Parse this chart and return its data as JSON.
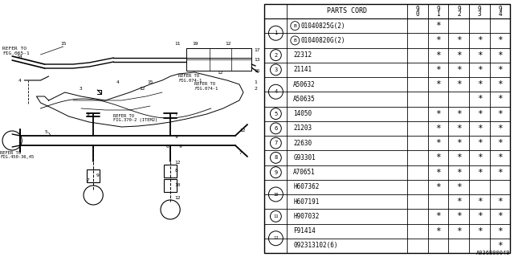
{
  "figure_code": "A036B00049",
  "rows": [
    {
      "num": "1",
      "parts": [
        {
          "code": "B01040825G(2)",
          "has_b": true,
          "stars": [
            false,
            true,
            false,
            false,
            false
          ]
        },
        {
          "code": "B01040820G(2)",
          "has_b": true,
          "stars": [
            false,
            true,
            true,
            true,
            true
          ]
        }
      ]
    },
    {
      "num": "2",
      "parts": [
        {
          "code": "22312",
          "has_b": false,
          "stars": [
            false,
            true,
            true,
            true,
            true
          ]
        }
      ]
    },
    {
      "num": "3",
      "parts": [
        {
          "code": "21141",
          "has_b": false,
          "stars": [
            false,
            true,
            true,
            true,
            true
          ]
        }
      ]
    },
    {
      "num": "4",
      "parts": [
        {
          "code": "A50632",
          "has_b": false,
          "stars": [
            false,
            true,
            true,
            true,
            true
          ]
        },
        {
          "code": "A50635",
          "has_b": false,
          "stars": [
            false,
            false,
            false,
            true,
            true
          ]
        }
      ]
    },
    {
      "num": "5",
      "parts": [
        {
          "code": "14050",
          "has_b": false,
          "stars": [
            false,
            true,
            true,
            true,
            true
          ]
        }
      ]
    },
    {
      "num": "6",
      "parts": [
        {
          "code": "21203",
          "has_b": false,
          "stars": [
            false,
            true,
            true,
            true,
            true
          ]
        }
      ]
    },
    {
      "num": "7",
      "parts": [
        {
          "code": "22630",
          "has_b": false,
          "stars": [
            false,
            true,
            true,
            true,
            true
          ]
        }
      ]
    },
    {
      "num": "8",
      "parts": [
        {
          "code": "G93301",
          "has_b": false,
          "stars": [
            false,
            true,
            true,
            true,
            true
          ]
        }
      ]
    },
    {
      "num": "9",
      "parts": [
        {
          "code": "A70651",
          "has_b": false,
          "stars": [
            false,
            true,
            true,
            true,
            true
          ]
        }
      ]
    },
    {
      "num": "10",
      "parts": [
        {
          "code": "H607362",
          "has_b": false,
          "stars": [
            false,
            true,
            true,
            false,
            false
          ]
        },
        {
          "code": "H607191",
          "has_b": false,
          "stars": [
            false,
            false,
            true,
            true,
            true
          ]
        }
      ]
    },
    {
      "num": "11",
      "parts": [
        {
          "code": "H907032",
          "has_b": false,
          "stars": [
            false,
            true,
            true,
            true,
            true
          ]
        }
      ]
    },
    {
      "num": "12",
      "parts": [
        {
          "code": "F91414",
          "has_b": false,
          "stars": [
            false,
            true,
            true,
            true,
            true
          ]
        },
        {
          "code": "092313102(6)",
          "has_b": false,
          "stars": [
            false,
            false,
            false,
            false,
            true
          ]
        }
      ]
    }
  ],
  "bg_color": "#ffffff",
  "lc": "#000000"
}
